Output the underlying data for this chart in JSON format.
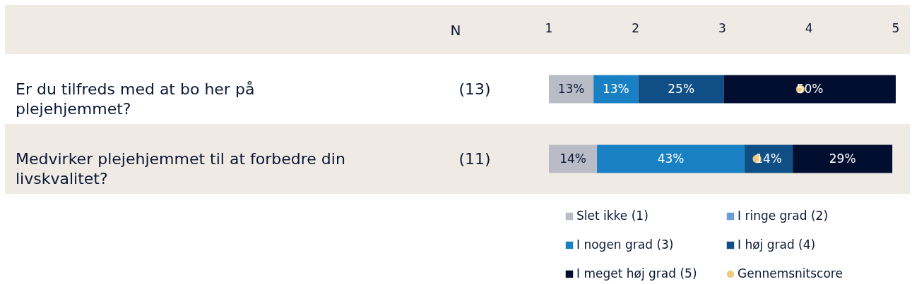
{
  "chart_data": {
    "type": "bar",
    "orientation": "horizontal",
    "stacked": true,
    "categories": [
      "Er du tilfreds med at bo her på plejehjemmet?",
      "Medvirker plejehjemmet til at forbedre din livskvalitet?"
    ],
    "xlim": [
      0,
      101
    ],
    "x2lim": [
      1,
      5
    ],
    "x2ticks": [
      1,
      2,
      3,
      4,
      5
    ],
    "grid": false,
    "legend": "bottom",
    "annotations": [
      "N",
      "(13)",
      "(11)"
    ],
    "series": [
      {
        "name": "Slet ikke (1)",
        "color": "#b9bcc6",
        "values": [
          13,
          14
        ],
        "value_labels": [
          "13%",
          "14%"
        ]
      },
      {
        "name": "I ringe grad (2)",
        "color": "#6a9fd3",
        "values": [
          0,
          0
        ],
        "value_labels": [
          null,
          null
        ]
      },
      {
        "name": "I nogen grad (3)",
        "color": "#1a80c4",
        "values": [
          13,
          43
        ],
        "value_labels": [
          "13%",
          "43%"
        ]
      },
      {
        "name": "I høj grad (4)",
        "color": "#0f4f86",
        "values": [
          25,
          14
        ],
        "value_labels": [
          "25%",
          "14%"
        ]
      },
      {
        "name": "I meget høj grad (5)",
        "color": "#020e30",
        "values": [
          50,
          29
        ],
        "value_labels": [
          "50%",
          "29%"
        ]
      },
      {
        "name": "Gennemsnitscore",
        "type": "scatter",
        "axis": "x2",
        "marker": "circle",
        "color": "#eec983",
        "values": [
          3.9,
          3.4
        ]
      }
    ]
  }
}
